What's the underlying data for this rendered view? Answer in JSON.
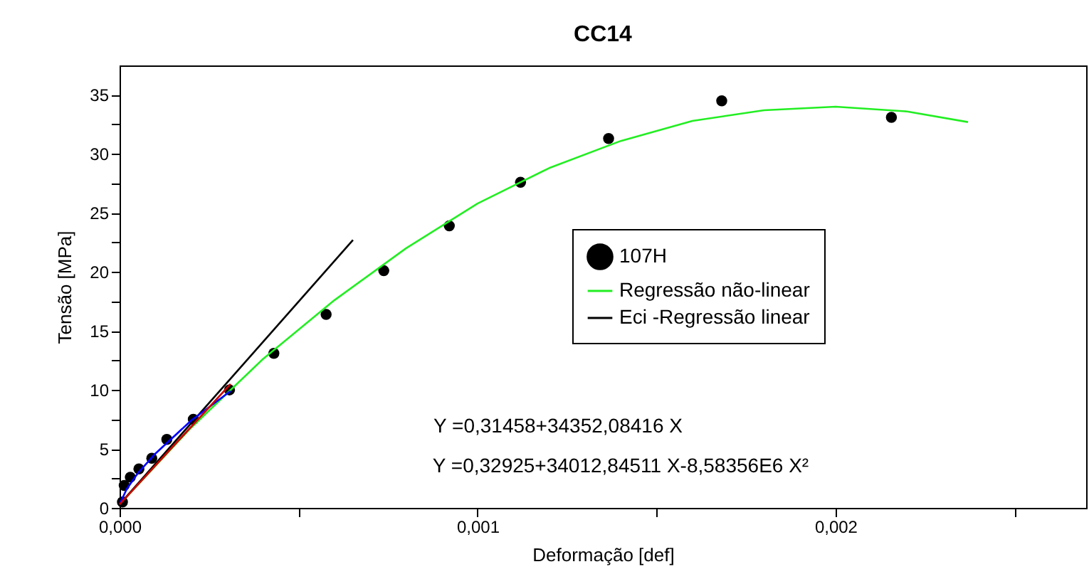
{
  "chart_data": {
    "type": "scatter",
    "title": "CC14",
    "xlabel": "Deformação [def]",
    "ylabel": "Tensão [MPa]",
    "xlim": [
      0,
      0.0027
    ],
    "ylim": [
      0,
      37.5
    ],
    "xticks": [
      {
        "value": 0,
        "label": "0,000"
      },
      {
        "value": 0.0005,
        "label": null
      },
      {
        "value": 0.001,
        "label": "0,001"
      },
      {
        "value": 0.0015,
        "label": null
      },
      {
        "value": 0.002,
        "label": "0,002"
      },
      {
        "value": 0.0025,
        "label": null
      }
    ],
    "yticks": [
      0,
      {
        "value": 2.5,
        "label": null
      },
      5,
      {
        "value": 7.5,
        "label": null
      },
      10,
      {
        "value": 12.5,
        "label": null
      },
      15,
      {
        "value": 17.5,
        "label": null
      },
      20,
      {
        "value": 22.5,
        "label": null
      },
      25,
      {
        "value": 27.5,
        "label": null
      },
      30,
      {
        "value": 32.5,
        "label": null
      },
      35
    ],
    "grid": false,
    "legend": "right",
    "series": [
      {
        "name": "107H",
        "marker": "circle",
        "color": "#000000",
        "x": [
          8e-06,
          1.3e-05,
          3e-05,
          5.4e-05,
          9e-05,
          0.000132,
          0.000206,
          0.000307,
          0.000431,
          0.000577,
          0.000738,
          0.000921,
          0.00112,
          0.001366,
          0.001682,
          0.002156
        ],
        "values": [
          0.5,
          1.9,
          2.6,
          3.3,
          4.2,
          5.8,
          7.5,
          10.0,
          13.1,
          16.4,
          20.1,
          23.9,
          27.6,
          31.3,
          34.5,
          33.1
        ]
      },
      {
        "name": "Regressão não-linear",
        "type": "line",
        "color": "#22ee22",
        "x": [
          0,
          0.0002,
          0.0004,
          0.0006,
          0.0008,
          0.001,
          0.0012,
          0.0014,
          0.0016,
          0.0018,
          0.002,
          0.0022,
          0.00237
        ],
        "values": [
          0.3,
          6.8,
          12.6,
          17.6,
          22.0,
          25.8,
          28.8,
          31.1,
          32.8,
          33.7,
          34.0,
          33.6,
          32.7
        ]
      },
      {
        "name": "Eci -Regressão linear",
        "type": "line",
        "color": "#000000",
        "x": [
          0,
          0.000652
        ],
        "values": [
          0.3,
          22.7
        ]
      },
      {
        "type": "line",
        "color": "#0000ff",
        "x": [
          0,
          2e-05,
          5e-05,
          0.0001,
          0.0002,
          0.00031
        ],
        "values": [
          0.3,
          1.6,
          2.9,
          4.6,
          7.4,
          9.9
        ]
      },
      {
        "type": "line",
        "color": "#cc0000",
        "x": [
          0,
          0.00031
        ],
        "values": [
          0.3,
          10.5
        ]
      }
    ],
    "annotations": [
      "Y =0,31458+34352,08416 X",
      "Y =0,32925+34012,84511 X-8,58356E6 X²"
    ]
  }
}
